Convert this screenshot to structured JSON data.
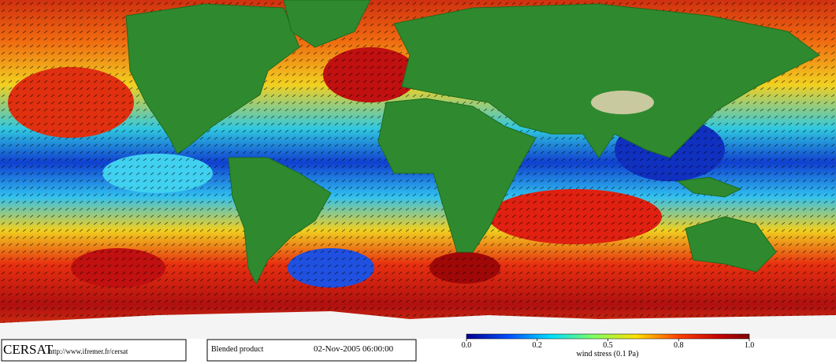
{
  "footer": {
    "logo": "CERSAT",
    "url": "http://www.ifremer.fr/cersat",
    "product": "Blended product",
    "timestamp": "02-Nov-2005 06:00:00"
  },
  "colorbar": {
    "label": "wind stress (0.1 Pa)",
    "ticks": [
      {
        "value": 0,
        "label": "0.0"
      },
      {
        "value": 0.2,
        "label": "0.2"
      },
      {
        "value": 0.5,
        "label": "0.5"
      },
      {
        "value": 0.8,
        "label": "0.8"
      },
      {
        "value": 1,
        "label": "1.0"
      }
    ]
  }
}
